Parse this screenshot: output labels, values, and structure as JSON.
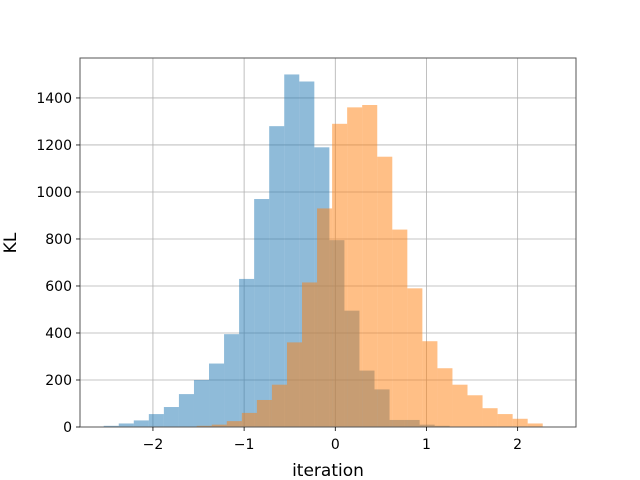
{
  "chart_data": {
    "type": "bar",
    "title": "",
    "xlabel": "iteration",
    "ylabel": "KL",
    "xlim": [
      -2.8,
      2.64
    ],
    "ylim": [
      0,
      1570
    ],
    "x_ticks": [
      -2,
      -1,
      0,
      1,
      2
    ],
    "x_tick_labels": [
      "−2",
      "−1",
      "0",
      "1",
      "2"
    ],
    "y_ticks": [
      0,
      200,
      400,
      600,
      800,
      1000,
      1200,
      1400
    ],
    "y_tick_labels": [
      "0",
      "200",
      "400",
      "600",
      "800",
      "1000",
      "1200",
      "1400"
    ],
    "grid": true,
    "legend": null,
    "bin_width": 0.165,
    "series": [
      {
        "color": "#1f77b4",
        "alpha": 0.5,
        "bins": [
          {
            "x0": -2.54,
            "count": 5
          },
          {
            "x0": -2.375,
            "count": 15
          },
          {
            "x0": -2.21,
            "count": 28
          },
          {
            "x0": -2.045,
            "count": 55
          },
          {
            "x0": -1.88,
            "count": 85
          },
          {
            "x0": -1.715,
            "count": 140
          },
          {
            "x0": -1.55,
            "count": 200
          },
          {
            "x0": -1.385,
            "count": 270
          },
          {
            "x0": -1.22,
            "count": 395
          },
          {
            "x0": -1.055,
            "count": 630
          },
          {
            "x0": -0.89,
            "count": 970
          },
          {
            "x0": -0.725,
            "count": 1280
          },
          {
            "x0": -0.56,
            "count": 1500
          },
          {
            "x0": -0.395,
            "count": 1470
          },
          {
            "x0": -0.23,
            "count": 1190
          },
          {
            "x0": -0.065,
            "count": 795
          },
          {
            "x0": 0.1,
            "count": 495
          },
          {
            "x0": 0.265,
            "count": 240
          },
          {
            "x0": 0.43,
            "count": 160
          },
          {
            "x0": 0.595,
            "count": 30
          },
          {
            "x0": 0.76,
            "count": 30
          },
          {
            "x0": 0.925,
            "count": 10
          },
          {
            "x0": 1.09,
            "count": 5
          }
        ]
      },
      {
        "color": "#ff7f0e",
        "alpha": 0.5,
        "bins": [
          {
            "x0": -1.52,
            "count": 5
          },
          {
            "x0": -1.355,
            "count": 10
          },
          {
            "x0": -1.19,
            "count": 25
          },
          {
            "x0": -1.025,
            "count": 60
          },
          {
            "x0": -0.86,
            "count": 115
          },
          {
            "x0": -0.695,
            "count": 180
          },
          {
            "x0": -0.53,
            "count": 360
          },
          {
            "x0": -0.365,
            "count": 615
          },
          {
            "x0": -0.2,
            "count": 930
          },
          {
            "x0": -0.035,
            "count": 1290
          },
          {
            "x0": 0.13,
            "count": 1360
          },
          {
            "x0": 0.295,
            "count": 1370
          },
          {
            "x0": 0.46,
            "count": 1150
          },
          {
            "x0": 0.625,
            "count": 840
          },
          {
            "x0": 0.79,
            "count": 590
          },
          {
            "x0": 0.955,
            "count": 365
          },
          {
            "x0": 1.12,
            "count": 250
          },
          {
            "x0": 1.285,
            "count": 180
          },
          {
            "x0": 1.45,
            "count": 135
          },
          {
            "x0": 1.615,
            "count": 80
          },
          {
            "x0": 1.78,
            "count": 55
          },
          {
            "x0": 1.945,
            "count": 35
          },
          {
            "x0": 2.11,
            "count": 15
          }
        ]
      }
    ]
  }
}
